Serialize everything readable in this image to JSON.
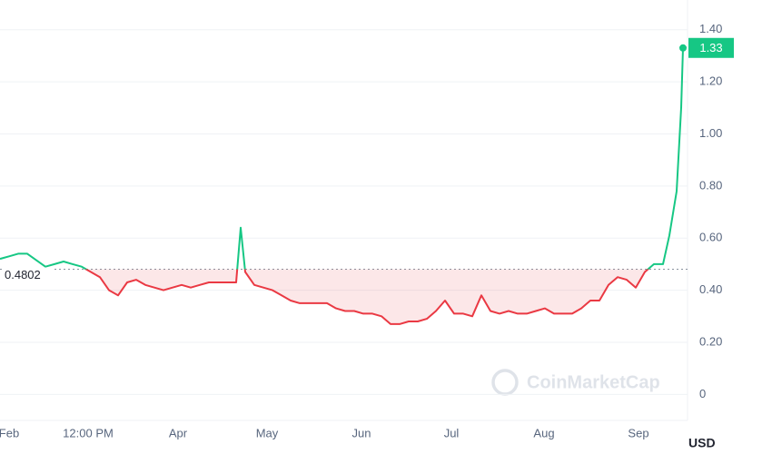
{
  "chart_data": {
    "type": "line",
    "watermark": "CoinMarketCap",
    "y_label": "USD",
    "baseline": 0.4802,
    "up_color": "#16c784",
    "down_color": "#ea3943",
    "grid": true,
    "xlim": [
      0,
      75.7
    ],
    "xticks": [
      {
        "value": 1.0,
        "label": "Feb"
      },
      {
        "value": 9.7,
        "label": "12:00 PM"
      },
      {
        "value": 19.6,
        "label": "Apr"
      },
      {
        "value": 29.4,
        "label": "May"
      },
      {
        "value": 39.8,
        "label": "Jun"
      },
      {
        "value": 49.7,
        "label": "Jul"
      },
      {
        "value": 59.9,
        "label": "Aug"
      },
      {
        "value": 70.3,
        "label": "Sep"
      }
    ],
    "ylim": [
      -0.1,
      1.5
    ],
    "yticks": [
      0,
      {
        "value": 0.2,
        "label": "0.20"
      },
      {
        "value": 0.4,
        "label": "0.40"
      },
      {
        "value": 0.6,
        "label": "0.60"
      },
      {
        "value": 0.8,
        "label": "0.80"
      },
      {
        "value": 1.0,
        "label": "1.00"
      },
      {
        "value": 1.2,
        "label": "1.20"
      },
      {
        "value": 1.4,
        "label": "1.40"
      }
    ],
    "x": [
      0,
      1,
      2,
      3,
      5,
      6,
      7,
      8,
      9,
      10,
      11,
      12,
      13,
      14,
      15,
      16,
      17,
      18,
      19,
      20,
      21,
      22,
      23,
      24,
      25,
      26,
      26.5,
      27,
      28,
      29,
      30,
      31,
      32,
      33,
      34,
      35,
      36,
      37,
      38,
      39,
      40,
      41,
      42,
      43,
      44,
      45,
      46,
      47,
      48,
      49,
      50,
      51,
      52,
      53,
      54,
      55,
      56,
      57,
      58,
      59,
      60,
      61,
      62,
      63,
      64,
      65,
      66,
      67,
      68,
      69,
      70,
      71,
      72,
      73,
      73.7,
      74.5,
      75,
      75.2
    ],
    "series": [
      {
        "values": [
          0.52,
          0.53,
          0.54,
          0.54,
          0.49,
          0.5,
          0.51,
          0.5,
          0.49,
          0.47,
          0.45,
          0.4,
          0.38,
          0.43,
          0.44,
          0.42,
          0.41,
          0.4,
          0.41,
          0.42,
          0.41,
          0.42,
          0.43,
          0.43,
          0.43,
          0.43,
          0.64,
          0.47,
          0.42,
          0.41,
          0.4,
          0.38,
          0.36,
          0.35,
          0.35,
          0.35,
          0.35,
          0.33,
          0.32,
          0.32,
          0.31,
          0.31,
          0.3,
          0.27,
          0.27,
          0.28,
          0.28,
          0.29,
          0.32,
          0.36,
          0.31,
          0.31,
          0.3,
          0.38,
          0.32,
          0.31,
          0.32,
          0.31,
          0.31,
          0.32,
          0.33,
          0.31,
          0.31,
          0.31,
          0.33,
          0.36,
          0.36,
          0.42,
          0.45,
          0.44,
          0.41,
          0.47,
          0.5,
          0.5,
          0.61,
          0.78,
          1.1,
          1.33
        ]
      }
    ]
  }
}
